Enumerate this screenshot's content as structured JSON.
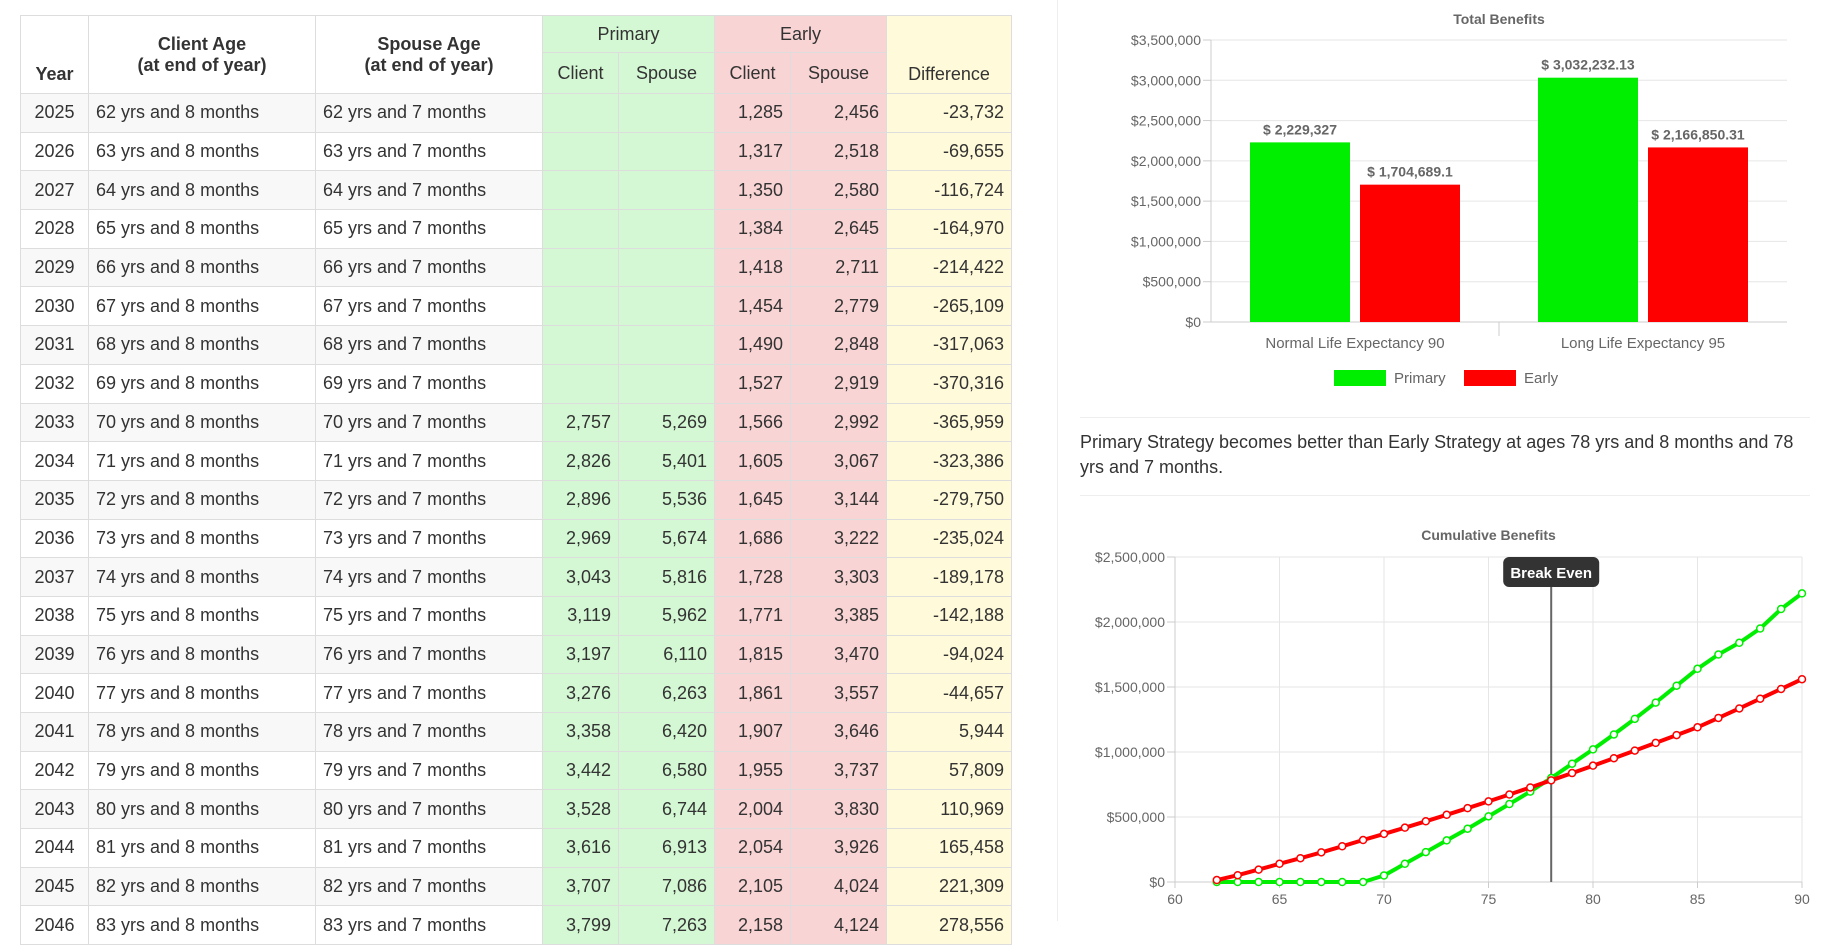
{
  "table": {
    "headers": {
      "year": "Year",
      "client_age": [
        "Client Age",
        "(at end of year)"
      ],
      "spouse_age": [
        "Spouse Age",
        "(at end of year)"
      ],
      "primary": "Primary",
      "early": "Early",
      "difference": "Difference",
      "client": "Client",
      "spouse": "Spouse"
    },
    "rows": [
      {
        "year": "2025",
        "client_age": "62 yrs and 8 months",
        "spouse_age": "62 yrs and 7 months",
        "primary_client": "",
        "primary_spouse": "",
        "early_client": "1,285",
        "early_spouse": "2,456",
        "difference": "-23,732"
      },
      {
        "year": "2026",
        "client_age": "63 yrs and 8 months",
        "spouse_age": "63 yrs and 7 months",
        "primary_client": "",
        "primary_spouse": "",
        "early_client": "1,317",
        "early_spouse": "2,518",
        "difference": "-69,655"
      },
      {
        "year": "2027",
        "client_age": "64 yrs and 8 months",
        "spouse_age": "64 yrs and 7 months",
        "primary_client": "",
        "primary_spouse": "",
        "early_client": "1,350",
        "early_spouse": "2,580",
        "difference": "-116,724"
      },
      {
        "year": "2028",
        "client_age": "65 yrs and 8 months",
        "spouse_age": "65 yrs and 7 months",
        "primary_client": "",
        "primary_spouse": "",
        "early_client": "1,384",
        "early_spouse": "2,645",
        "difference": "-164,970"
      },
      {
        "year": "2029",
        "client_age": "66 yrs and 8 months",
        "spouse_age": "66 yrs and 7 months",
        "primary_client": "",
        "primary_spouse": "",
        "early_client": "1,418",
        "early_spouse": "2,711",
        "difference": "-214,422"
      },
      {
        "year": "2030",
        "client_age": "67 yrs and 8 months",
        "spouse_age": "67 yrs and 7 months",
        "primary_client": "",
        "primary_spouse": "",
        "early_client": "1,454",
        "early_spouse": "2,779",
        "difference": "-265,109"
      },
      {
        "year": "2031",
        "client_age": "68 yrs and 8 months",
        "spouse_age": "68 yrs and 7 months",
        "primary_client": "",
        "primary_spouse": "",
        "early_client": "1,490",
        "early_spouse": "2,848",
        "difference": "-317,063"
      },
      {
        "year": "2032",
        "client_age": "69 yrs and 8 months",
        "spouse_age": "69 yrs and 7 months",
        "primary_client": "",
        "primary_spouse": "",
        "early_client": "1,527",
        "early_spouse": "2,919",
        "difference": "-370,316"
      },
      {
        "year": "2033",
        "client_age": "70 yrs and 8 months",
        "spouse_age": "70 yrs and 7 months",
        "primary_client": "2,757",
        "primary_spouse": "5,269",
        "early_client": "1,566",
        "early_spouse": "2,992",
        "difference": "-365,959"
      },
      {
        "year": "2034",
        "client_age": "71 yrs and 8 months",
        "spouse_age": "71 yrs and 7 months",
        "primary_client": "2,826",
        "primary_spouse": "5,401",
        "early_client": "1,605",
        "early_spouse": "3,067",
        "difference": "-323,386"
      },
      {
        "year": "2035",
        "client_age": "72 yrs and 8 months",
        "spouse_age": "72 yrs and 7 months",
        "primary_client": "2,896",
        "primary_spouse": "5,536",
        "early_client": "1,645",
        "early_spouse": "3,144",
        "difference": "-279,750"
      },
      {
        "year": "2036",
        "client_age": "73 yrs and 8 months",
        "spouse_age": "73 yrs and 7 months",
        "primary_client": "2,969",
        "primary_spouse": "5,674",
        "early_client": "1,686",
        "early_spouse": "3,222",
        "difference": "-235,024"
      },
      {
        "year": "2037",
        "client_age": "74 yrs and 8 months",
        "spouse_age": "74 yrs and 7 months",
        "primary_client": "3,043",
        "primary_spouse": "5,816",
        "early_client": "1,728",
        "early_spouse": "3,303",
        "difference": "-189,178"
      },
      {
        "year": "2038",
        "client_age": "75 yrs and 8 months",
        "spouse_age": "75 yrs and 7 months",
        "primary_client": "3,119",
        "primary_spouse": "5,962",
        "early_client": "1,771",
        "early_spouse": "3,385",
        "difference": "-142,188"
      },
      {
        "year": "2039",
        "client_age": "76 yrs and 8 months",
        "spouse_age": "76 yrs and 7 months",
        "primary_client": "3,197",
        "primary_spouse": "6,110",
        "early_client": "1,815",
        "early_spouse": "3,470",
        "difference": "-94,024"
      },
      {
        "year": "2040",
        "client_age": "77 yrs and 8 months",
        "spouse_age": "77 yrs and 7 months",
        "primary_client": "3,276",
        "primary_spouse": "6,263",
        "early_client": "1,861",
        "early_spouse": "3,557",
        "difference": "-44,657"
      },
      {
        "year": "2041",
        "client_age": "78 yrs and 8 months",
        "spouse_age": "78 yrs and 7 months",
        "primary_client": "3,358",
        "primary_spouse": "6,420",
        "early_client": "1,907",
        "early_spouse": "3,646",
        "difference": "5,944"
      },
      {
        "year": "2042",
        "client_age": "79 yrs and 8 months",
        "spouse_age": "79 yrs and 7 months",
        "primary_client": "3,442",
        "primary_spouse": "6,580",
        "early_client": "1,955",
        "early_spouse": "3,737",
        "difference": "57,809"
      },
      {
        "year": "2043",
        "client_age": "80 yrs and 8 months",
        "spouse_age": "80 yrs and 7 months",
        "primary_client": "3,528",
        "primary_spouse": "6,744",
        "early_client": "2,004",
        "early_spouse": "3,830",
        "difference": "110,969"
      },
      {
        "year": "2044",
        "client_age": "81 yrs and 8 months",
        "spouse_age": "81 yrs and 7 months",
        "primary_client": "3,616",
        "primary_spouse": "6,913",
        "early_client": "2,054",
        "early_spouse": "3,926",
        "difference": "165,458"
      },
      {
        "year": "2045",
        "client_age": "82 yrs and 8 months",
        "spouse_age": "82 yrs and 7 months",
        "primary_client": "3,707",
        "primary_spouse": "7,086",
        "early_client": "2,105",
        "early_spouse": "4,024",
        "difference": "221,309"
      },
      {
        "year": "2046",
        "client_age": "83 yrs and 8 months",
        "spouse_age": "83 yrs and 7 months",
        "primary_client": "3,799",
        "primary_spouse": "7,263",
        "early_client": "2,158",
        "early_spouse": "4,124",
        "difference": "278,556"
      }
    ]
  },
  "note": {
    "text": "Primary Strategy becomes better than Early Strategy at ages 78 yrs and 8 months and 78 yrs and 7 months."
  },
  "colors": {
    "primary": "#00ee00",
    "early": "#ff0000",
    "primary_cell": "#d4f8d4",
    "early_cell": "#f9d4d4",
    "difference_cell": "#fffad9"
  },
  "chart_data": [
    {
      "type": "bar",
      "title": "Total Benefits",
      "categories": [
        "Normal Life Expectancy 90",
        "Long Life Expectancy 95"
      ],
      "series": [
        {
          "name": "Primary",
          "values": [
            2229327,
            3032232.13
          ],
          "labels": [
            "$ 2,229,327",
            "$ 3,032,232.13"
          ],
          "color": "#00ee00"
        },
        {
          "name": "Early",
          "values": [
            1704689.1,
            2166850.31
          ],
          "labels": [
            "$ 1,704,689.1",
            "$ 2,166,850.31"
          ],
          "color": "#ff0000"
        }
      ],
      "ylim": [
        0,
        3500000
      ],
      "yticks": [
        0,
        500000,
        1000000,
        1500000,
        2000000,
        2500000,
        3000000,
        3500000
      ],
      "ytick_labels": [
        "$0",
        "$500,000",
        "$1,000,000",
        "$1,500,000",
        "$2,000,000",
        "$2,500,000",
        "$3,000,000",
        "$3,500,000"
      ],
      "legend_position": "bottom",
      "grid": true
    },
    {
      "type": "line",
      "title": "Cumulative Benefits",
      "xlim": [
        60,
        90
      ],
      "ylim": [
        0,
        2500000
      ],
      "xticks": [
        60,
        65,
        70,
        75,
        80,
        85,
        90
      ],
      "xtick_labels": [
        "60",
        "65",
        "70",
        "75",
        "80",
        "85",
        "90"
      ],
      "yticks": [
        0,
        500000,
        1000000,
        1500000,
        2000000,
        2500000
      ],
      "ytick_labels": [
        "$0",
        "$500,000",
        "$1,000,000",
        "$1,500,000",
        "$2,000,000",
        "$2,500,000"
      ],
      "annotation": {
        "label": "Break Even",
        "x": 78.0
      },
      "series": [
        {
          "name": "Primary",
          "color": "#00ee00",
          "x": [
            62,
            63,
            64,
            65,
            66,
            67,
            68,
            69,
            70,
            71,
            72,
            73,
            74,
            75,
            76,
            77,
            78,
            79,
            80,
            81,
            82,
            83,
            84,
            85,
            86,
            87,
            88,
            89,
            90
          ],
          "y": [
            0,
            0,
            0,
            0,
            0,
            0,
            0,
            0,
            50000,
            140000,
            230000,
            320000,
            410000,
            505000,
            600000,
            695000,
            800000,
            910000,
            1020000,
            1135000,
            1255000,
            1380000,
            1510000,
            1640000,
            1750000,
            1840000,
            1950000,
            2100000,
            2220000
          ]
        },
        {
          "name": "Early",
          "color": "#ff0000",
          "x": [
            62,
            63,
            64,
            65,
            66,
            67,
            68,
            69,
            70,
            71,
            72,
            73,
            74,
            75,
            76,
            77,
            78,
            79,
            80,
            81,
            82,
            83,
            84,
            85,
            86,
            87,
            88,
            89,
            90
          ],
          "y": [
            15000,
            52000,
            95000,
            140000,
            183000,
            228000,
            275000,
            323000,
            370000,
            418000,
            467000,
            517000,
            568000,
            620000,
            673000,
            727000,
            782000,
            838000,
            895000,
            952000,
            1011000,
            1070000,
            1130000,
            1190000,
            1262000,
            1335000,
            1410000,
            1485000,
            1560000
          ]
        }
      ],
      "grid": true
    }
  ]
}
